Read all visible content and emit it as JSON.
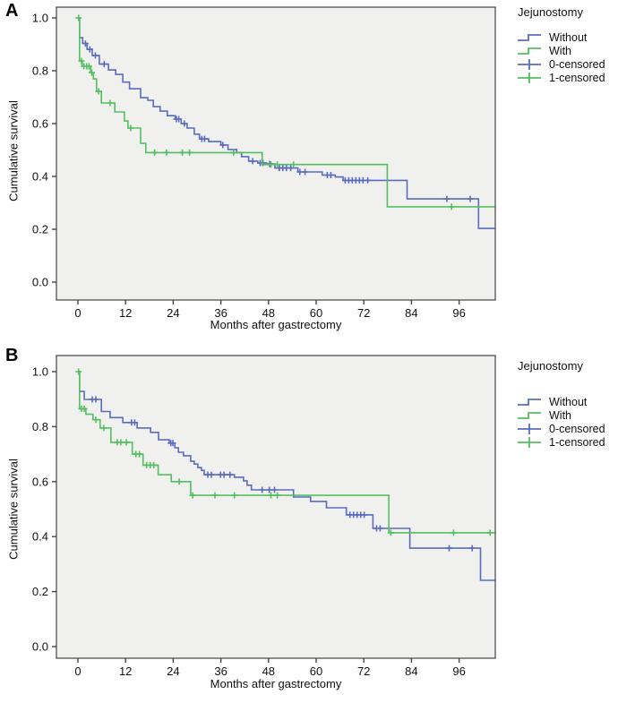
{
  "colors": {
    "without": "#5b6cc0",
    "with": "#55bf60",
    "plot_bg": "#f0f0ee",
    "axis": "#444444",
    "text": "#111111"
  },
  "chart_data": [
    {
      "panel_label": "A",
      "type": "line",
      "subtype": "kaplan-meier-step",
      "xlabel": "Months after gastrectomy",
      "ylabel": "Cumulative survival",
      "xticks": [
        0,
        12,
        24,
        36,
        48,
        60,
        72,
        84,
        96
      ],
      "yticks": [
        "0.0",
        "0.2",
        "0.4",
        "0.6",
        "0.8",
        "1.0"
      ],
      "xlim": [
        0,
        105
      ],
      "ylim": [
        0,
        1
      ],
      "grid": false,
      "legend": {
        "title": "Jejunostomy",
        "position": "right-top",
        "items": [
          {
            "label": "Without",
            "symbol": "step",
            "color": "blue"
          },
          {
            "label": "With",
            "symbol": "step",
            "color": "green"
          },
          {
            "label": "0-censored",
            "symbol": "plus",
            "color": "blue"
          },
          {
            "label": "1-censored",
            "symbol": "plus",
            "color": "green"
          }
        ]
      },
      "series": [
        {
          "name": "Without",
          "color_key": "without",
          "steps": [
            [
              0,
              1.0
            ],
            [
              0.4,
              0.925
            ],
            [
              1.2,
              0.903
            ],
            [
              2.3,
              0.881
            ],
            [
              3.6,
              0.858
            ],
            [
              5.4,
              0.825
            ],
            [
              7.7,
              0.803
            ],
            [
              9.5,
              0.786
            ],
            [
              11.3,
              0.757
            ],
            [
              13,
              0.732
            ],
            [
              15.8,
              0.698
            ],
            [
              17.6,
              0.688
            ],
            [
              19,
              0.664
            ],
            [
              20.7,
              0.647
            ],
            [
              22.5,
              0.63
            ],
            [
              24.5,
              0.617
            ],
            [
              26,
              0.6
            ],
            [
              27.5,
              0.583
            ],
            [
              29.3,
              0.56
            ],
            [
              30.6,
              0.542
            ],
            [
              32.9,
              0.532
            ],
            [
              36,
              0.519
            ],
            [
              37.8,
              0.502
            ],
            [
              40,
              0.49
            ],
            [
              41.2,
              0.475
            ],
            [
              43,
              0.458
            ],
            [
              45.3,
              0.451
            ],
            [
              47.5,
              0.447
            ],
            [
              49.6,
              0.432
            ],
            [
              55.4,
              0.417
            ],
            [
              61.5,
              0.405
            ],
            [
              64.8,
              0.398
            ],
            [
              66.8,
              0.385
            ],
            [
              82.9,
              0.315
            ],
            [
              100.9,
              0.203
            ]
          ],
          "censors": [
            [
              1.9,
              0.903
            ],
            [
              3.0,
              0.881
            ],
            [
              4.4,
              0.858
            ],
            [
              6.6,
              0.825
            ],
            [
              24.8,
              0.617
            ],
            [
              25.4,
              0.617
            ],
            [
              26.8,
              0.6
            ],
            [
              31.2,
              0.542
            ],
            [
              31.9,
              0.542
            ],
            [
              36.5,
              0.519
            ],
            [
              44,
              0.458
            ],
            [
              45.9,
              0.451
            ],
            [
              46.6,
              0.451
            ],
            [
              48.3,
              0.447
            ],
            [
              50.7,
              0.432
            ],
            [
              51.6,
              0.432
            ],
            [
              52.5,
              0.432
            ],
            [
              53.6,
              0.432
            ],
            [
              55.9,
              0.417
            ],
            [
              57.2,
              0.417
            ],
            [
              62.8,
              0.405
            ],
            [
              63.7,
              0.405
            ],
            [
              67.3,
              0.385
            ],
            [
              68.2,
              0.385
            ],
            [
              69.1,
              0.385
            ],
            [
              70,
              0.385
            ],
            [
              70.9,
              0.385
            ],
            [
              71.8,
              0.385
            ],
            [
              73,
              0.385
            ],
            [
              92.9,
              0.315
            ],
            [
              98.8,
              0.315
            ]
          ]
        },
        {
          "name": "With",
          "color_key": "with",
          "steps": [
            [
              0,
              1.0
            ],
            [
              0.4,
              0.837
            ],
            [
              1.1,
              0.817
            ],
            [
              3.2,
              0.793
            ],
            [
              3.9,
              0.769
            ],
            [
              4.7,
              0.722
            ],
            [
              5.9,
              0.678
            ],
            [
              9.3,
              0.644
            ],
            [
              11.7,
              0.61
            ],
            [
              12.6,
              0.583
            ],
            [
              15.8,
              0.525
            ],
            [
              17.1,
              0.49
            ],
            [
              46.4,
              0.445
            ],
            [
              77.9,
              0.285
            ]
          ],
          "censors": [
            [
              0.15,
              1.0
            ],
            [
              0.9,
              0.837
            ],
            [
              1.5,
              0.817
            ],
            [
              2.2,
              0.817
            ],
            [
              2.8,
              0.817
            ],
            [
              3.5,
              0.793
            ],
            [
              5.2,
              0.722
            ],
            [
              8.1,
              0.678
            ],
            [
              13.3,
              0.583
            ],
            [
              19.3,
              0.49
            ],
            [
              22.3,
              0.49
            ],
            [
              26.3,
              0.49
            ],
            [
              28.1,
              0.49
            ],
            [
              39.2,
              0.49
            ],
            [
              48.6,
              0.445
            ],
            [
              50.2,
              0.445
            ],
            [
              54.3,
              0.445
            ],
            [
              94.1,
              0.285
            ]
          ]
        }
      ]
    },
    {
      "panel_label": "B",
      "type": "line",
      "subtype": "kaplan-meier-step",
      "xlabel": "Months after gastrectomy",
      "ylabel": "Cumulative survival",
      "xticks": [
        0,
        12,
        24,
        36,
        48,
        60,
        72,
        84,
        96
      ],
      "yticks": [
        "0.0",
        "0.2",
        "0.4",
        "0.6",
        "0.8",
        "1.0"
      ],
      "xlim": [
        0,
        105
      ],
      "ylim": [
        0,
        1
      ],
      "grid": false,
      "legend": {
        "title": "Jejunostomy",
        "position": "right-top",
        "items": [
          {
            "label": "Without",
            "symbol": "step",
            "color": "blue"
          },
          {
            "label": "With",
            "symbol": "step",
            "color": "green"
          },
          {
            "label": "0-censored",
            "symbol": "plus",
            "color": "blue"
          },
          {
            "label": "1-censored",
            "symbol": "plus",
            "color": "green"
          }
        ]
      },
      "series": [
        {
          "name": "Without",
          "color_key": "without",
          "steps": [
            [
              0,
              1.0
            ],
            [
              0.4,
              0.928
            ],
            [
              1.6,
              0.899
            ],
            [
              5.9,
              0.855
            ],
            [
              8.1,
              0.833
            ],
            [
              11.3,
              0.815
            ],
            [
              14.9,
              0.795
            ],
            [
              18.3,
              0.779
            ],
            [
              20.3,
              0.752
            ],
            [
              23,
              0.74
            ],
            [
              24.4,
              0.723
            ],
            [
              25.3,
              0.707
            ],
            [
              26.6,
              0.694
            ],
            [
              28.4,
              0.674
            ],
            [
              29.3,
              0.664
            ],
            [
              30.2,
              0.651
            ],
            [
              31.1,
              0.641
            ],
            [
              31.8,
              0.625
            ],
            [
              39.4,
              0.616
            ],
            [
              41.7,
              0.603
            ],
            [
              42.6,
              0.587
            ],
            [
              43.7,
              0.57
            ],
            [
              54.3,
              0.544
            ],
            [
              58.6,
              0.528
            ],
            [
              62.6,
              0.505
            ],
            [
              67.6,
              0.479
            ],
            [
              74.3,
              0.43
            ],
            [
              83.6,
              0.358
            ],
            [
              101.4,
              0.241
            ]
          ],
          "censors": [
            [
              3.6,
              0.899
            ],
            [
              4.5,
              0.899
            ],
            [
              13.5,
              0.815
            ],
            [
              14.3,
              0.815
            ],
            [
              23.4,
              0.74
            ],
            [
              23.9,
              0.74
            ],
            [
              32.7,
              0.625
            ],
            [
              33.6,
              0.625
            ],
            [
              35.9,
              0.625
            ],
            [
              36.8,
              0.625
            ],
            [
              38.3,
              0.625
            ],
            [
              46.4,
              0.57
            ],
            [
              48.2,
              0.57
            ],
            [
              49.5,
              0.57
            ],
            [
              68.5,
              0.479
            ],
            [
              69.4,
              0.479
            ],
            [
              70.3,
              0.479
            ],
            [
              71.2,
              0.479
            ],
            [
              72.1,
              0.479
            ],
            [
              75.2,
              0.43
            ],
            [
              76.1,
              0.43
            ],
            [
              93.5,
              0.358
            ],
            [
              99.3,
              0.358
            ]
          ]
        },
        {
          "name": "With",
          "color_key": "with",
          "steps": [
            [
              0,
              1.0
            ],
            [
              0.4,
              0.865
            ],
            [
              2,
              0.845
            ],
            [
              3.8,
              0.825
            ],
            [
              5.6,
              0.795
            ],
            [
              8.3,
              0.743
            ],
            [
              13.7,
              0.7
            ],
            [
              16.4,
              0.66
            ],
            [
              20.2,
              0.625
            ],
            [
              23.5,
              0.6
            ],
            [
              28.4,
              0.55
            ],
            [
              78.3,
              0.414
            ]
          ],
          "censors": [
            [
              0.15,
              1.0
            ],
            [
              0.9,
              0.865
            ],
            [
              1.6,
              0.865
            ],
            [
              4.5,
              0.825
            ],
            [
              6.5,
              0.795
            ],
            [
              9.9,
              0.743
            ],
            [
              10.8,
              0.743
            ],
            [
              12.2,
              0.743
            ],
            [
              14.6,
              0.7
            ],
            [
              15.5,
              0.7
            ],
            [
              17.3,
              0.66
            ],
            [
              18.2,
              0.66
            ],
            [
              19.1,
              0.66
            ],
            [
              25.5,
              0.6
            ],
            [
              28.9,
              0.55
            ],
            [
              34.5,
              0.55
            ],
            [
              39.4,
              0.55
            ],
            [
              48.6,
              0.55
            ],
            [
              50.2,
              0.55
            ],
            [
              78.8,
              0.414
            ],
            [
              94.6,
              0.414
            ],
            [
              103.8,
              0.414
            ]
          ]
        }
      ]
    }
  ]
}
